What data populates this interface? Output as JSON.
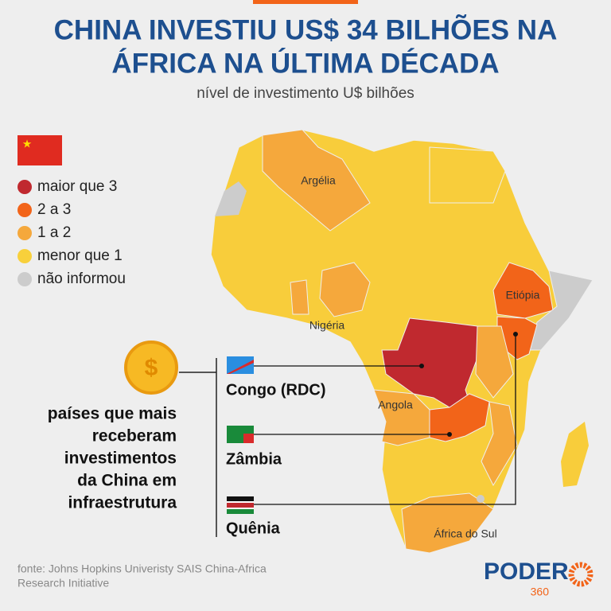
{
  "header": {
    "title_lines": [
      "CHINA INVESTIU US$ 34 BILHÕES NA",
      "ÁFRICA NA ÚLTIMA DÉCADA"
    ],
    "subtitle": "nível de investimento U$ bilhões"
  },
  "legend": [
    "maior que 3",
    "2 a 3",
    "1 a 2",
    "menor que 1",
    "não informou"
  ],
  "map_labels": [
    "Argélia",
    "Nigéria",
    "Etiópia",
    "Angola",
    "África do Sul"
  ],
  "callout": {
    "lines": [
      "países que mais",
      "receberam",
      "investimentos",
      "da China em",
      "infraestrutura"
    ],
    "countries": [
      "Congo (RDC)",
      "Zâmbia",
      "Quênia"
    ]
  },
  "source": [
    "fonte: Johns Hopkins Univeristy SAIS China-Africa",
    "Research Initiative"
  ],
  "logo": {
    "name": "PODER",
    "number": "360"
  }
}
